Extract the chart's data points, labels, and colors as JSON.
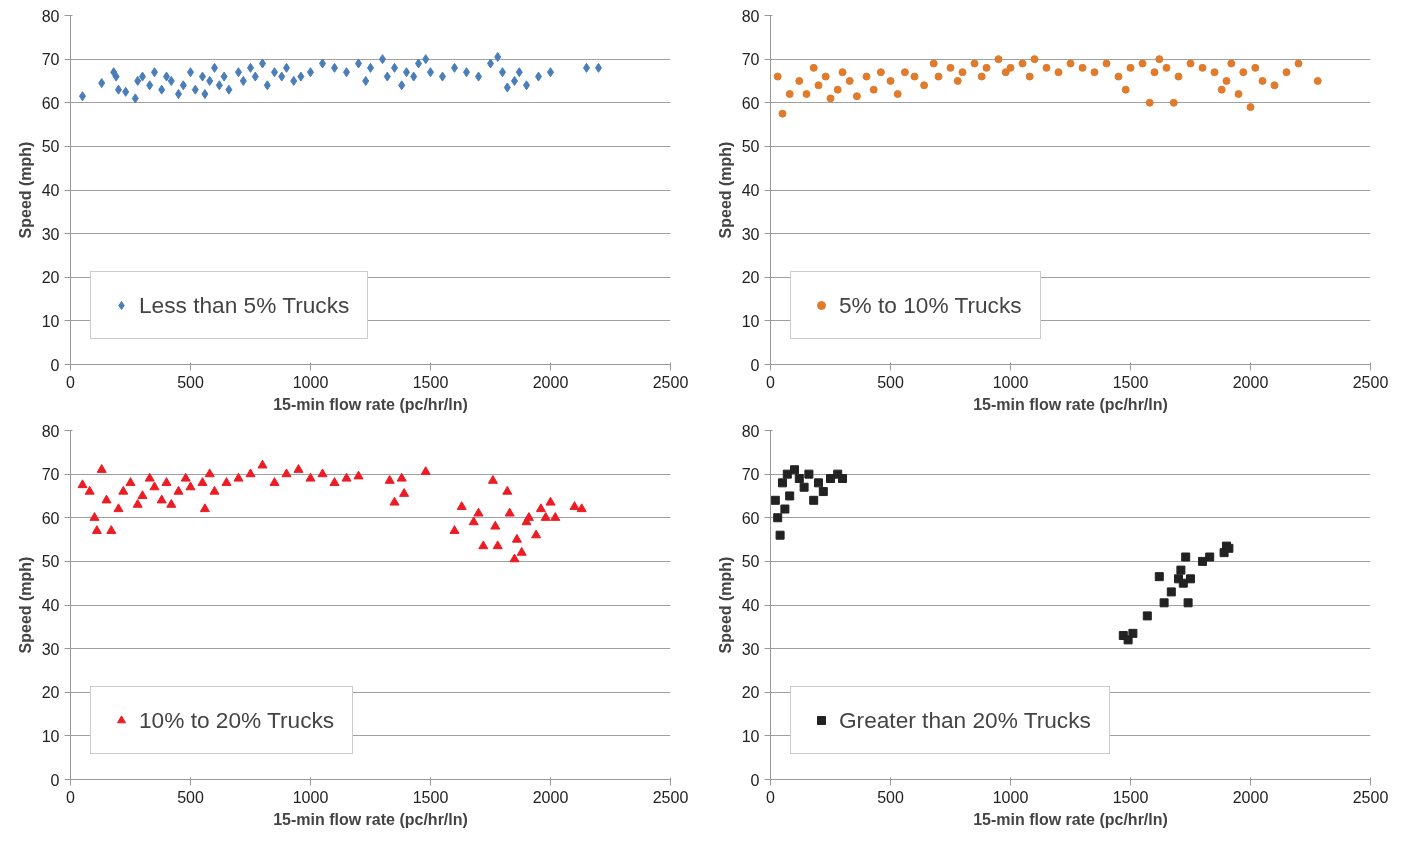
{
  "chart_data": [
    {
      "type": "scatter",
      "xlabel": "15-min flow rate (pc/hr/ln)",
      "ylabel": "Speed (mph)",
      "xlim": [
        0,
        2500
      ],
      "ylim": [
        0,
        80
      ],
      "xticks": [
        0,
        500,
        1000,
        1500,
        2000,
        2500
      ],
      "yticks": [
        0,
        10,
        20,
        30,
        40,
        50,
        60,
        70,
        80
      ],
      "grid": "y",
      "legend": "bottom left",
      "marker": "diamond",
      "series": [
        {
          "name": "Less than 5% Trucks",
          "color": "#4a7ebb",
          "x": [
            50,
            130,
            180,
            190,
            200,
            230,
            270,
            280,
            300,
            330,
            350,
            380,
            400,
            420,
            450,
            470,
            500,
            520,
            550,
            560,
            580,
            600,
            620,
            640,
            660,
            700,
            720,
            750,
            770,
            800,
            820,
            850,
            880,
            900,
            930,
            960,
            1000,
            1050,
            1100,
            1150,
            1200,
            1230,
            1250,
            1300,
            1320,
            1350,
            1380,
            1400,
            1430,
            1450,
            1480,
            1500,
            1550,
            1600,
            1650,
            1700,
            1750,
            1780,
            1800,
            1820,
            1850,
            1870,
            1900,
            1950,
            2000,
            2150,
            2200
          ],
          "values": [
            61.5,
            64.5,
            67,
            66,
            63,
            62.5,
            61,
            65,
            66,
            64,
            67,
            63,
            66,
            65,
            62,
            64,
            67,
            63,
            66,
            62,
            65,
            68,
            64,
            66,
            63,
            67,
            65,
            68,
            66,
            69,
            64,
            67,
            66,
            68,
            65,
            66,
            67,
            69,
            68,
            67,
            69,
            65,
            68,
            70,
            66,
            68,
            64,
            67,
            66,
            69,
            70,
            67,
            66,
            68,
            67,
            66,
            69,
            70.5,
            67,
            63.5,
            65,
            67,
            64,
            66,
            67,
            68,
            68
          ]
        }
      ]
    },
    {
      "type": "scatter",
      "xlabel": "15-min flow rate (pc/hr/ln)",
      "ylabel": "Speed (mph)",
      "xlim": [
        0,
        2500
      ],
      "ylim": [
        0,
        80
      ],
      "xticks": [
        0,
        500,
        1000,
        1500,
        2000,
        2500
      ],
      "yticks": [
        0,
        10,
        20,
        30,
        40,
        50,
        60,
        70,
        80
      ],
      "grid": "y",
      "legend": "bottom left",
      "marker": "circle",
      "series": [
        {
          "name": "5% to 10% Trucks",
          "color": "#e07b2c",
          "x": [
            30,
            50,
            80,
            120,
            150,
            180,
            200,
            230,
            250,
            280,
            300,
            330,
            360,
            400,
            430,
            460,
            500,
            530,
            560,
            600,
            640,
            680,
            700,
            750,
            780,
            800,
            850,
            880,
            900,
            950,
            980,
            1000,
            1050,
            1080,
            1100,
            1150,
            1200,
            1250,
            1300,
            1350,
            1400,
            1450,
            1480,
            1500,
            1550,
            1580,
            1600,
            1620,
            1650,
            1680,
            1700,
            1750,
            1800,
            1850,
            1880,
            1900,
            1920,
            1950,
            1970,
            2000,
            2020,
            2050,
            2100,
            2150,
            2200,
            2280
          ],
          "values": [
            66,
            57.5,
            62,
            65,
            62,
            68,
            64,
            66,
            61,
            63,
            67,
            65,
            61.5,
            66,
            63,
            67,
            65,
            62,
            67,
            66,
            64,
            69,
            66,
            68,
            65,
            67,
            69,
            66,
            68,
            70,
            67,
            68,
            69,
            66,
            70,
            68,
            67,
            69,
            68,
            67,
            69,
            66,
            63,
            68,
            69,
            60,
            67,
            70,
            68,
            60,
            66,
            69,
            68,
            67,
            63,
            65,
            69,
            62,
            67,
            59,
            68,
            65,
            64,
            67,
            69,
            65
          ]
        }
      ]
    },
    {
      "type": "scatter",
      "xlabel": "15-min flow rate (pc/hr/ln)",
      "ylabel": "Speed (mph)",
      "xlim": [
        0,
        2500
      ],
      "ylim": [
        0,
        80
      ],
      "xticks": [
        0,
        500,
        1000,
        1500,
        2000,
        2500
      ],
      "yticks": [
        0,
        10,
        20,
        30,
        40,
        50,
        60,
        70,
        80
      ],
      "grid": "y",
      "legend": "bottom left",
      "marker": "triangle",
      "series": [
        {
          "name": "10% to 20% Trucks",
          "color": "#ed1c24",
          "x": [
            50,
            80,
            100,
            110,
            130,
            150,
            170,
            200,
            220,
            250,
            280,
            300,
            330,
            350,
            380,
            400,
            420,
            450,
            480,
            500,
            550,
            560,
            580,
            600,
            650,
            700,
            750,
            800,
            850,
            900,
            950,
            1000,
            1050,
            1100,
            1150,
            1200,
            1330,
            1350,
            1380,
            1390,
            1480,
            1600,
            1630,
            1680,
            1700,
            1720,
            1760,
            1770,
            1780,
            1820,
            1830,
            1850,
            1860,
            1880,
            1900,
            1910,
            1940,
            1960,
            1980,
            2000,
            2020,
            2100,
            2130
          ],
          "values": [
            67.5,
            66,
            60,
            57,
            71,
            64,
            57,
            62,
            66,
            68,
            63,
            65,
            69,
            67,
            64,
            68,
            63,
            66,
            69,
            67,
            68,
            62,
            70,
            66,
            68,
            69,
            70,
            72,
            68,
            70,
            71,
            69,
            70,
            68,
            69,
            69.5,
            68.5,
            63.5,
            69,
            65.5,
            70.5,
            57,
            62.5,
            59,
            61,
            53.5,
            68.5,
            58,
            53.5,
            66,
            61,
            50.5,
            55,
            52,
            59,
            60,
            56,
            62,
            60,
            63.5,
            60,
            62.5,
            62
          ]
        }
      ]
    },
    {
      "type": "scatter",
      "xlabel": "15-min flow rate (pc/hr/ln)",
      "ylabel": "Speed (mph)",
      "xlim": [
        0,
        2500
      ],
      "ylim": [
        0,
        80
      ],
      "xticks": [
        0,
        500,
        1000,
        1500,
        2000,
        2500
      ],
      "yticks": [
        0,
        10,
        20,
        30,
        40,
        50,
        60,
        70,
        80
      ],
      "grid": "y",
      "legend": "bottom left",
      "marker": "square",
      "series": [
        {
          "name": "Greater than 20% Trucks",
          "color": "#222222",
          "x": [
            20,
            30,
            40,
            50,
            60,
            70,
            80,
            100,
            120,
            140,
            160,
            180,
            200,
            220,
            250,
            280,
            300,
            1470,
            1490,
            1510,
            1570,
            1620,
            1640,
            1670,
            1700,
            1710,
            1720,
            1730,
            1740,
            1750,
            1800,
            1830,
            1890,
            1900,
            1910
          ],
          "values": [
            64,
            60,
            56,
            68,
            62,
            70,
            65,
            71,
            69,
            67,
            70,
            64,
            68,
            66,
            69,
            70,
            69,
            33,
            32,
            33.5,
            37.5,
            46.5,
            40.5,
            43,
            46,
            48,
            45,
            51,
            40.5,
            46,
            50,
            51,
            52,
            53.5,
            53
          ]
        }
      ]
    }
  ]
}
